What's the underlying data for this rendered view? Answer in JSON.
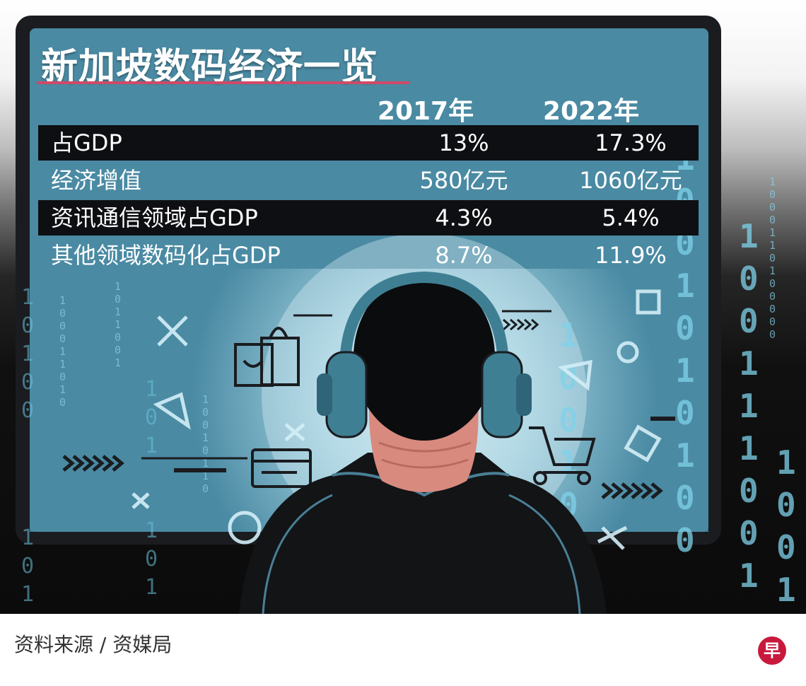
{
  "infographic": {
    "title": "新加坡数码经济一览",
    "columns": [
      "2017年",
      "2022年"
    ],
    "rows": [
      {
        "label": "占GDP",
        "v2017": "13%",
        "v2022": "17.3%"
      },
      {
        "label": "经济增值",
        "v2017": "580亿元",
        "v2022": "1060亿元"
      },
      {
        "label": "资讯通信领域占GDP",
        "v2017": "4.3%",
        "v2022": "5.4%"
      },
      {
        "label": "其他领域数码化占GDP",
        "v2017": "8.7%",
        "v2022": "11.9%"
      }
    ]
  },
  "source": "资料来源 / 资媒局",
  "logo": "早",
  "colors": {
    "screen": "#4a8aa3",
    "frame": "#1a1c20",
    "row_dark": "#0e0f12",
    "title_underline": "#d04a68",
    "binary_glow": "#7fd2ea",
    "headphones": "#3f7f93",
    "neck": "#d98a7e",
    "logo_red": "#c8193c"
  },
  "icons": [
    "shopping-bag-icon",
    "shopping-cart-icon",
    "credit-card-icon",
    "chevrons-icon",
    "circle-icon",
    "square-icon",
    "triangle-icon",
    "cross-icon"
  ]
}
